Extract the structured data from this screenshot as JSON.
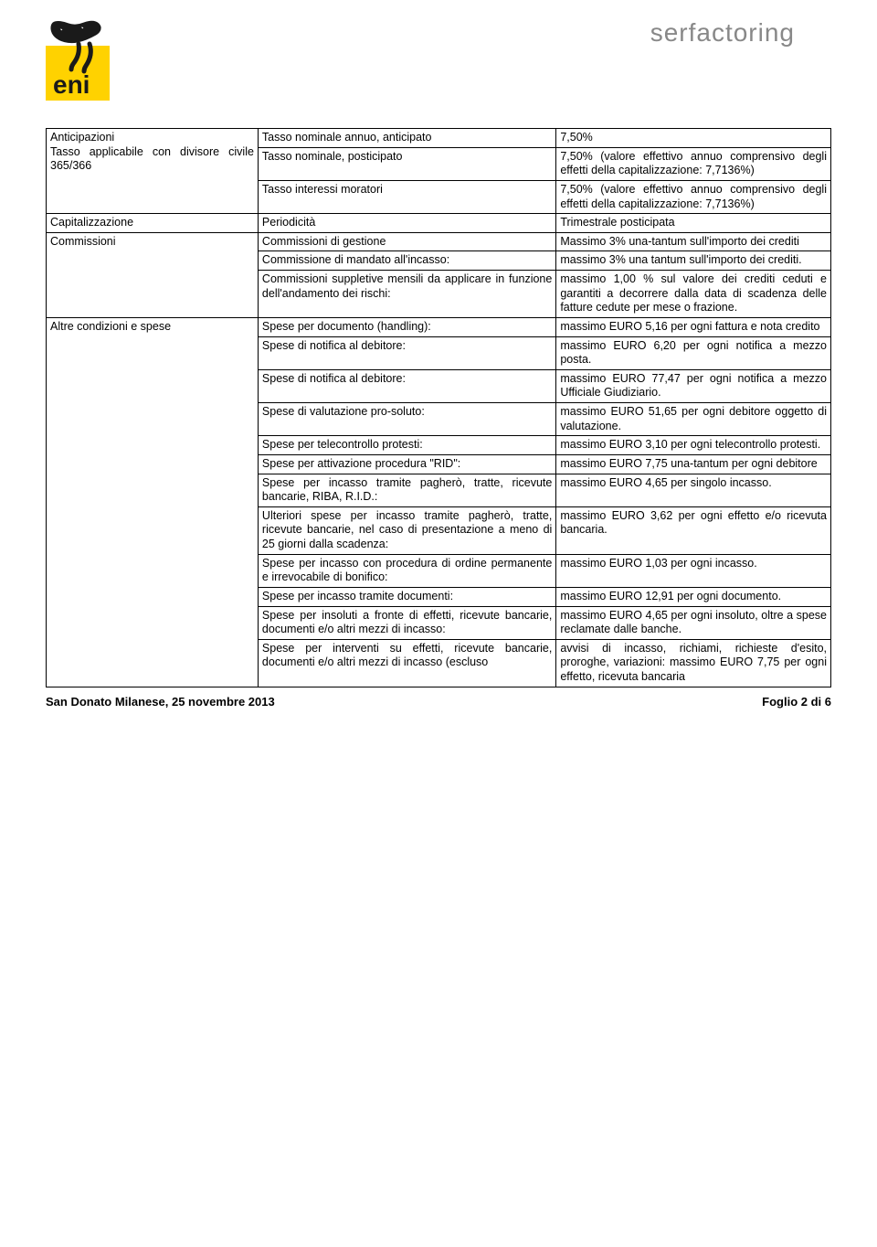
{
  "header": {
    "brand": "serfactoring",
    "logo_word": "eni"
  },
  "footer": {
    "left": "San Donato Milanese, 25 novembre 2013",
    "right": "Foglio 2 di 6"
  },
  "style": {
    "background_color": "#ffffff",
    "text_color": "#000000",
    "border_color": "#000000",
    "brand_color": "#888888",
    "logo_yellow": "#ffd200",
    "logo_black": "#1a1a1a",
    "body_fontsize": 12.5,
    "brand_fontsize": 28,
    "footer_fontsize": 13,
    "col_widths_pct": [
      27,
      38,
      35
    ]
  },
  "rows": [
    {
      "c1": "Anticipazioni",
      "c2": "Tasso nominale annuo, anticipato",
      "c3": "7,50%",
      "c1_rowspan": 3
    },
    {
      "c1": "Tasso applicabile con divisore civile 365/366",
      "c2": "Tasso nominale, posticipato",
      "c3": "7,50% (valore effettivo annuo comprensivo degli effetti della capitalizzazione: 7,7136%)",
      "skip_c1": true
    },
    {
      "c2": "Tasso interessi moratori",
      "c3": "7,50% (valore effettivo annuo comprensivo degli effetti della capitalizzazione: 7,7136%)",
      "skip_c1": true
    },
    {
      "c1": "Capitalizzazione",
      "c2": "Periodicità",
      "c3": "Trimestrale posticipata"
    },
    {
      "c1": "Commissioni",
      "c2": "Commissioni di gestione",
      "c3": "Massimo 3% una-tantum sull'importo dei crediti",
      "c1_rowspan": 3
    },
    {
      "c2": "Commissione di mandato all'incasso:",
      "c3": "massimo 3% una tantum sull'importo dei crediti.",
      "skip_c1": true
    },
    {
      "c2": "Commissioni suppletive mensili da applicare in funzione dell'andamento dei rischi:",
      "c3": "massimo 1,00 % sul valore dei crediti ceduti e garantiti a decorrere dalla data di scadenza delle fatture cedute per mese o frazione.",
      "skip_c1": true
    },
    {
      "c1": "Altre condizioni e spese",
      "c2": "Spese per documento (handling):",
      "c3": "massimo EURO 5,16 per ogni fattura e nota credito",
      "c1_rowspan": 12
    },
    {
      "c2": "Spese di notifica al debitore:",
      "c3": "massimo EURO 6,20 per ogni notifica a mezzo posta.",
      "skip_c1": true
    },
    {
      "c2": "Spese di notifica al debitore:",
      "c3": "massimo EURO 77,47 per ogni notifica a mezzo Ufficiale Giudiziario.",
      "skip_c1": true
    },
    {
      "c2": "Spese di valutazione pro-soluto:",
      "c3": "massimo EURO 51,65 per ogni debitore oggetto di valutazione.",
      "skip_c1": true
    },
    {
      "c2": "Spese per telecontrollo protesti:",
      "c3": "massimo EURO 3,10 per ogni telecontrollo protesti.",
      "skip_c1": true
    },
    {
      "c2": "Spese per attivazione procedura \"RID\":",
      "c3": "massimo EURO 7,75 una-tantum per ogni debitore",
      "skip_c1": true
    },
    {
      "c2": "Spese per incasso tramite pagherò, tratte, ricevute bancarie, RIBA, R.I.D.:",
      "c3": "massimo EURO 4,65 per singolo incasso.",
      "skip_c1": true
    },
    {
      "c2": "Ulteriori spese per incasso tramite pagherò, tratte, ricevute bancarie, nel caso di presentazione a meno di 25 giorni dalla scadenza:",
      "c3": "massimo EURO 3,62 per ogni effetto e/o ricevuta bancaria.",
      "skip_c1": true
    },
    {
      "c2": "Spese per incasso con procedura di ordine permanente e irrevocabile di bonifico:",
      "c3": "massimo EURO 1,03 per ogni incasso.",
      "skip_c1": true
    },
    {
      "c2": "Spese per incasso tramite documenti:",
      "c3": "massimo EURO 12,91 per ogni documento.",
      "skip_c1": true
    },
    {
      "c2": "Spese per insoluti a fronte di effetti, ricevute bancarie, documenti e/o altri mezzi di incasso:",
      "c3": "massimo EURO 4,65 per ogni insoluto, oltre a spese reclamate dalle banche.",
      "skip_c1": true
    },
    {
      "c2": "Spese per interventi su effetti, ricevute bancarie, documenti e/o altri mezzi di incasso (escluso",
      "c3": "avvisi di incasso, richiami, richieste d'esito, proroghe, variazioni: massimo EURO 7,75 per ogni effetto, ricevuta bancaria",
      "skip_c1": true
    }
  ]
}
